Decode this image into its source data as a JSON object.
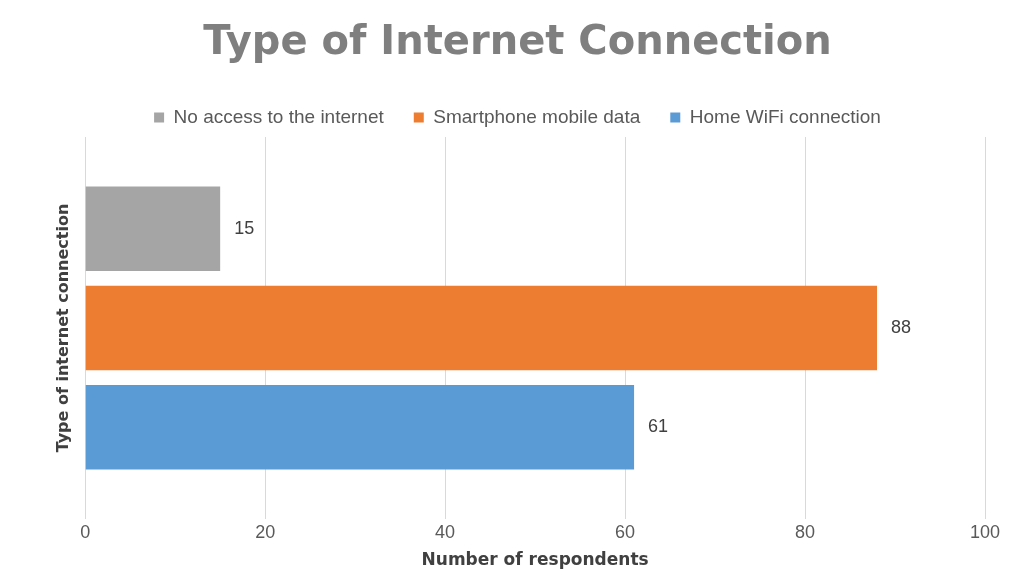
{
  "chart_data": {
    "type": "bar",
    "orientation": "horizontal",
    "title": "Type of Internet Connection",
    "xlabel": "Number of respondents",
    "ylabel": "Type of internet connection",
    "categories": [
      null
    ],
    "series": [
      {
        "name": "No access to the internet",
        "color": "#a5a5a5",
        "values": [
          15
        ]
      },
      {
        "name": "Smartphone mobile data",
        "color": "#ed7d31",
        "values": [
          88
        ]
      },
      {
        "name": "Home WiFi connection",
        "color": "#5b9bd5",
        "values": [
          61
        ]
      }
    ],
    "xlim": [
      0,
      100
    ],
    "xticks": [
      0,
      20,
      40,
      60,
      80,
      100
    ],
    "grid": "x",
    "legend": "top",
    "tick_labels": "x",
    "data_labels": true
  }
}
